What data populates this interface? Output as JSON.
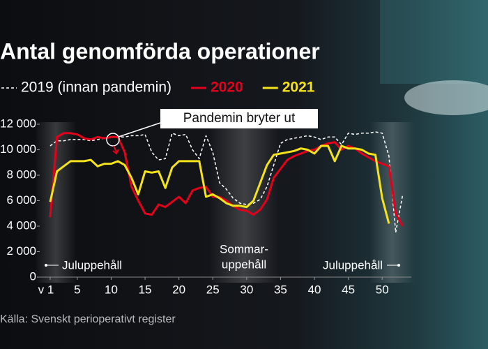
{
  "chart_data": {
    "type": "line",
    "title": "Antal genomförda operationer",
    "x": [
      1,
      2,
      3,
      4,
      5,
      6,
      7,
      8,
      9,
      10,
      11,
      12,
      13,
      14,
      15,
      16,
      17,
      18,
      19,
      20,
      21,
      22,
      23,
      24,
      25,
      26,
      27,
      28,
      29,
      30,
      31,
      32,
      33,
      34,
      35,
      36,
      37,
      38,
      39,
      40,
      41,
      42,
      43,
      44,
      45,
      46,
      47,
      48,
      49,
      50,
      51,
      52,
      53
    ],
    "series": [
      {
        "name": "2019 (innan pandemin)",
        "color": "#ffffff",
        "dashed": true,
        "values": [
          10300,
          10700,
          10700,
          10800,
          10800,
          10800,
          10700,
          10800,
          10900,
          11000,
          11000,
          11000,
          11100,
          11100,
          11200,
          9800,
          9200,
          9300,
          11300,
          11100,
          11200,
          10000,
          9300,
          11100,
          9800,
          7400,
          6900,
          6200,
          5800,
          5700,
          5800,
          6100,
          7100,
          8800,
          10500,
          10800,
          10900,
          11000,
          11100,
          11000,
          10800,
          11000,
          11000,
          10400,
          11300,
          11200,
          11300,
          11300,
          11400,
          11300,
          9500,
          3500,
          6400
        ]
      },
      {
        "name": "2020",
        "color": "#e3001b",
        "dashed": false,
        "values": [
          4700,
          11000,
          11300,
          11300,
          11200,
          10900,
          10800,
          11000,
          10900,
          11000,
          11000,
          9800,
          7100,
          6000,
          5000,
          4900,
          5700,
          5500,
          5900,
          6300,
          5800,
          6800,
          7000,
          7100,
          6300,
          6300,
          6000,
          5600,
          5300,
          5200,
          4900,
          5300,
          6100,
          7800,
          8500,
          9200,
          9500,
          9700,
          9900,
          10000,
          10300,
          10500,
          10600,
          10000,
          10300,
          10100,
          9700,
          9400,
          9100,
          8900,
          8700,
          5000,
          4000
        ]
      },
      {
        "name": "2021",
        "color": "#f5e31a",
        "dashed": false,
        "values": [
          5900,
          8300,
          8700,
          9100,
          9100,
          9100,
          9200,
          8700,
          8900,
          8900,
          9100,
          8800,
          7800,
          6500,
          8300,
          8200,
          8300,
          7000,
          8600,
          9100,
          9100,
          9100,
          9100,
          6300,
          6500,
          6200,
          5800,
          5600,
          5600,
          5500,
          6000,
          7400,
          8800,
          9600,
          9700,
          9800,
          9900,
          10100,
          10000,
          9700,
          10300,
          10300,
          9100,
          10300,
          10100,
          10100,
          10000,
          9700,
          9600,
          6200,
          4200,
          null,
          null
        ]
      }
    ],
    "xlim": [
      -0.75,
      54.3
    ],
    "xticks": [
      {
        "value": 1,
        "label": "v 1"
      },
      5,
      10,
      15,
      20,
      25,
      30,
      35,
      40,
      45,
      50
    ],
    "ylim": [
      0,
      12000
    ],
    "yticks": [
      0,
      {
        "value": 2000,
        "label": "2 000"
      },
      {
        "value": 4000,
        "label": "4 000"
      },
      {
        "value": 6000,
        "label": "6 000"
      },
      {
        "value": 8000,
        "label": "8 000"
      },
      {
        "value": 10000,
        "label": "10 000"
      },
      {
        "value": 12000,
        "label": "12 000"
      }
    ],
    "grid": false,
    "annotations": {
      "pandemic": "Pandemin bryter ut",
      "left_break": "Juluppehåll",
      "summer_break": [
        "Sommar-",
        "uppehåll"
      ],
      "right_break": "Juluppehåll"
    },
    "source": "Källa: Svenskt perioperativt register"
  }
}
